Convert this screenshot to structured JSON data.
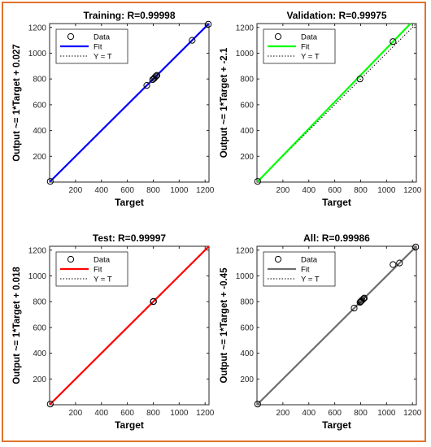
{
  "colors": {
    "training_fit": "#0000ff",
    "validation_fit": "#00ff00",
    "test_fit": "#ff0000",
    "all_fit": "#6e6e6e",
    "frame_border": "#e0732a"
  },
  "chart_data": [
    {
      "type": "scatter",
      "title": "Training: R=0.99998",
      "xlabel": "Target",
      "ylabel": "Output ~= 1*Target + 0.027",
      "xlim": [
        0,
        1230
      ],
      "ylim": [
        0,
        1230
      ],
      "xticks": [
        "200",
        "400",
        "600",
        "800",
        "1000",
        "1200"
      ],
      "yticks": [
        "200",
        "400",
        "600",
        "800",
        "1000",
        "1200"
      ],
      "grid": false,
      "legend_position": "top-left",
      "legend": [
        "Data",
        "Fit",
        "Y = T"
      ],
      "fit": {
        "slope": 1,
        "intercept": 0.027
      },
      "points": [
        [
          5,
          5
        ],
        [
          750,
          750
        ],
        [
          795,
          795
        ],
        [
          805,
          803
        ],
        [
          812,
          812
        ],
        [
          822,
          822
        ],
        [
          828,
          828
        ],
        [
          1100,
          1100
        ],
        [
          1225,
          1225
        ]
      ]
    },
    {
      "type": "scatter",
      "title": "Validation: R=0.99975",
      "xlabel": "Target",
      "ylabel": "Output ~= 1*Target + -2.1",
      "xlim": [
        0,
        1230
      ],
      "ylim": [
        0,
        1230
      ],
      "xticks": [
        "200",
        "400",
        "600",
        "800",
        "1000",
        "1200"
      ],
      "yticks": [
        "200",
        "400",
        "600",
        "800",
        "1000",
        "1200"
      ],
      "grid": false,
      "legend_position": "top-left",
      "legend": [
        "Data",
        "Fit",
        "Y = T"
      ],
      "fit": {
        "slope": 1.04,
        "intercept": -2.1
      },
      "points": [
        [
          5,
          5
        ],
        [
          795,
          800
        ],
        [
          1050,
          1090
        ]
      ]
    },
    {
      "type": "scatter",
      "title": "Test: R=0.99997",
      "xlabel": "Target",
      "ylabel": "Output ~= 1*Target + 0.018",
      "xlim": [
        0,
        1230
      ],
      "ylim": [
        0,
        1230
      ],
      "xticks": [
        "200",
        "400",
        "600",
        "800",
        "1000",
        "1200"
      ],
      "yticks": [
        "200",
        "400",
        "600",
        "800",
        "1000",
        "1200"
      ],
      "grid": false,
      "legend_position": "top-left",
      "legend": [
        "Data",
        "Fit",
        "Y = T"
      ],
      "fit": {
        "slope": 1,
        "intercept": 0.018
      },
      "points": [
        [
          5,
          5
        ],
        [
          800,
          800
        ],
        [
          802,
          802
        ]
      ]
    },
    {
      "type": "scatter",
      "title": "All: R=0.99986",
      "xlabel": "Target",
      "ylabel": "Output ~= 1*Target + -0.45",
      "xlim": [
        0,
        1230
      ],
      "ylim": [
        0,
        1230
      ],
      "xticks": [
        "200",
        "400",
        "600",
        "800",
        "1000",
        "1200"
      ],
      "yticks": [
        "200",
        "400",
        "600",
        "800",
        "1000",
        "1200"
      ],
      "grid": false,
      "legend_position": "top-left",
      "legend": [
        "Data",
        "Fit",
        "Y = T"
      ],
      "fit": {
        "slope": 1,
        "intercept": -0.45
      },
      "points": [
        [
          5,
          5
        ],
        [
          750,
          750
        ],
        [
          795,
          795
        ],
        [
          800,
          800
        ],
        [
          805,
          805
        ],
        [
          812,
          812
        ],
        [
          822,
          822
        ],
        [
          828,
          828
        ],
        [
          1050,
          1088
        ],
        [
          1100,
          1100
        ],
        [
          1225,
          1225
        ]
      ]
    }
  ]
}
